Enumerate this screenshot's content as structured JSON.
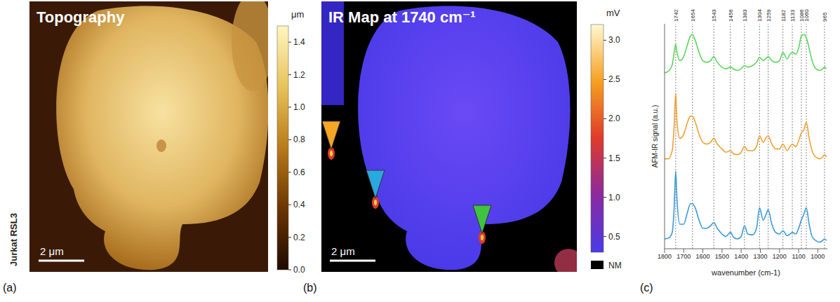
{
  "panels": [
    {
      "letter": "(a)",
      "title": "Topography",
      "side_label": "Jurkat RSL3",
      "scale_bar": "2 μm",
      "colorbar": {
        "unit": "μm",
        "range": [
          0,
          1.5
        ],
        "ticks": [
          {
            "value": 0,
            "label": "0.0"
          },
          0.2,
          0.4,
          0.6,
          0.8,
          {
            "value": 1,
            "label": "1.0"
          },
          1.2,
          1.4
        ]
      }
    },
    {
      "letter": "(b)",
      "title": "IR Map at 1740 cm⁻¹",
      "scale_bar": "2 μm",
      "colorbar": {
        "unit": "mV",
        "range": [
          0.3,
          3.2
        ],
        "ticks": [
          0.5,
          {
            "value": 1,
            "label": "1.0"
          },
          1.5,
          {
            "value": 2,
            "label": "2.0"
          },
          2.5,
          {
            "value": 3,
            "label": "3.0"
          }
        ],
        "no_measurement_label": "NM"
      },
      "markers": [
        {
          "color": "#f5a623"
        },
        {
          "color": "#2aa8e0"
        },
        {
          "color": "#3ec43e"
        }
      ]
    }
  ],
  "chart_data": {
    "type": "line",
    "letter": "(c)",
    "x_label": "wavenumber (cm-1)",
    "y_label": "AFM-IR signal (a.u.)",
    "x": [
      1800,
      1780,
      1760,
      1750,
      1742,
      1735,
      1720,
      1700,
      1680,
      1665,
      1654,
      1640,
      1620,
      1600,
      1580,
      1560,
      1543,
      1525,
      1500,
      1480,
      1456,
      1440,
      1420,
      1400,
      1383,
      1365,
      1340,
      1320,
      1304,
      1285,
      1270,
      1259,
      1240,
      1220,
      1200,
      1182,
      1160,
      1145,
      1133,
      1115,
      1100,
      1086,
      1073,
      1060,
      1045,
      1030,
      1010,
      990,
      975,
      965,
      955
    ],
    "series": [
      {
        "color": "#5cd65c",
        "values": [
          2.15,
          2.17,
          2.25,
          2.4,
          2.5,
          2.4,
          2.3,
          2.35,
          2.5,
          2.6,
          2.62,
          2.55,
          2.4,
          2.3,
          2.28,
          2.3,
          2.35,
          2.28,
          2.22,
          2.2,
          2.22,
          2.2,
          2.18,
          2.2,
          2.24,
          2.22,
          2.24,
          2.28,
          2.34,
          2.3,
          2.33,
          2.35,
          2.3,
          2.28,
          2.3,
          2.4,
          2.32,
          2.38,
          2.4,
          2.38,
          2.45,
          2.6,
          2.62,
          2.58,
          2.45,
          2.3,
          2.2,
          2.18,
          2.2,
          2.22,
          2.2
        ]
      },
      {
        "color": "#f0a030",
        "values": [
          1.1,
          1.1,
          1.2,
          1.5,
          1.9,
          1.55,
          1.35,
          1.4,
          1.55,
          1.62,
          1.62,
          1.55,
          1.4,
          1.3,
          1.28,
          1.3,
          1.35,
          1.28,
          1.22,
          1.18,
          1.2,
          1.16,
          1.15,
          1.18,
          1.25,
          1.2,
          1.2,
          1.25,
          1.38,
          1.3,
          1.36,
          1.38,
          1.28,
          1.22,
          1.22,
          1.28,
          1.2,
          1.25,
          1.28,
          1.25,
          1.32,
          1.42,
          1.45,
          1.55,
          1.35,
          1.2,
          1.12,
          1.1,
          1.12,
          1.15,
          1.12
        ]
      },
      {
        "color": "#3a9ad9",
        "values": [
          0.12,
          0.13,
          0.2,
          0.5,
          0.95,
          0.6,
          0.3,
          0.3,
          0.45,
          0.55,
          0.55,
          0.5,
          0.35,
          0.25,
          0.25,
          0.28,
          0.32,
          0.25,
          0.18,
          0.15,
          0.2,
          0.14,
          0.12,
          0.15,
          0.28,
          0.18,
          0.17,
          0.25,
          0.5,
          0.35,
          0.42,
          0.48,
          0.3,
          0.2,
          0.18,
          0.22,
          0.16,
          0.18,
          0.2,
          0.18,
          0.25,
          0.35,
          0.42,
          0.5,
          0.3,
          0.15,
          0.1,
          0.08,
          0.1,
          0.12,
          0.1
        ]
      }
    ],
    "xlim": [
      1800,
      950
    ],
    "xticks": [
      1800,
      1700,
      1600,
      1500,
      1400,
      1300,
      1200,
      1100,
      1000
    ],
    "ylim": [
      0,
      2.75
    ],
    "tick_labels": "x",
    "reference_lines": [
      1742,
      1654,
      1543,
      1456,
      1383,
      1304,
      1259,
      1182,
      1133,
      1086,
      1060,
      965
    ]
  }
}
